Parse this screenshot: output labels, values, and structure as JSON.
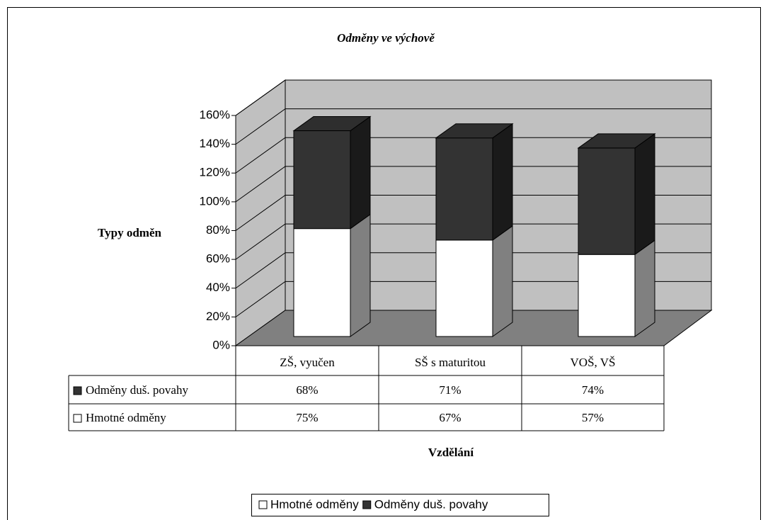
{
  "chart_data": {
    "type": "bar3d_stacked",
    "title": "Odměny ve výchově",
    "y_label": "Typy odměn",
    "x_label": "Vzdělání",
    "categories": [
      "ZŠ, vyučen",
      "SŠ s maturitou",
      "VOŠ, VŠ"
    ],
    "series": [
      {
        "name": "Hmotné odměny",
        "color": "#ffffff",
        "values": [
          75,
          67,
          57
        ],
        "value_labels": [
          "75%",
          "67%",
          "57%"
        ]
      },
      {
        "name": "Odměny duš. povahy",
        "color": "#333333",
        "values": [
          68,
          71,
          74
        ],
        "value_labels": [
          "68%",
          "71%",
          "74%"
        ]
      }
    ],
    "ylim": [
      0,
      160
    ],
    "yticks": [
      {
        "value": 0,
        "label": "0%"
      },
      {
        "value": 20,
        "label": "20%"
      },
      {
        "value": 40,
        "label": "40%"
      },
      {
        "value": 60,
        "label": "60%"
      },
      {
        "value": 80,
        "label": "80%"
      },
      {
        "value": 100,
        "label": "100%"
      },
      {
        "value": 120,
        "label": "120%"
      },
      {
        "value": 140,
        "label": "140%"
      },
      {
        "value": 160,
        "label": "160%"
      }
    ],
    "grid": true,
    "legend": "bottom"
  }
}
